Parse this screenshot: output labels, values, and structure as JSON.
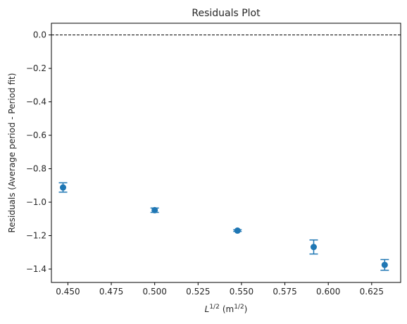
{
  "chart_data": {
    "type": "scatter",
    "title": "Residuals Plot",
    "xlabel": {
      "base": "L",
      "exp": "1/2",
      "unit_open": "(m",
      "unit_exp": "1/2",
      "unit_close": ")"
    },
    "ylabel": "Residuals (Average period - Period fit)",
    "xlim": [
      0.4405,
      0.6417
    ],
    "ylim": [
      -1.48,
      0.07
    ],
    "x_ticks": [
      0.45,
      0.475,
      0.5,
      0.525,
      0.55,
      0.575,
      0.6,
      0.625
    ],
    "x_tick_labels": [
      "0.450",
      "0.475",
      "0.500",
      "0.525",
      "0.550",
      "0.575",
      "0.600",
      "0.625"
    ],
    "y_ticks": [
      0.0,
      -0.2,
      -0.4,
      -0.6,
      -0.8,
      -1.0,
      -1.2,
      -1.4
    ],
    "y_tick_labels": [
      "0.0",
      "−0.2",
      "−0.4",
      "−0.6",
      "−0.8",
      "−1.0",
      "−1.2",
      "−1.4"
    ],
    "reference_line": {
      "y": 0.0,
      "style": "dashed",
      "color": "#000000"
    },
    "series": [
      {
        "color": "#1f77b4",
        "x": [
          0.4472,
          0.5,
          0.5477,
          0.5916,
          0.6325
        ],
        "y": [
          -0.912,
          -1.048,
          -1.17,
          -1.268,
          -1.375
        ],
        "yerr": [
          0.028,
          0.013,
          0.005,
          0.042,
          0.032
        ],
        "xerr": [
          0.0,
          0.0,
          0.0018,
          0.0,
          0.0
        ]
      }
    ],
    "grid": false
  }
}
